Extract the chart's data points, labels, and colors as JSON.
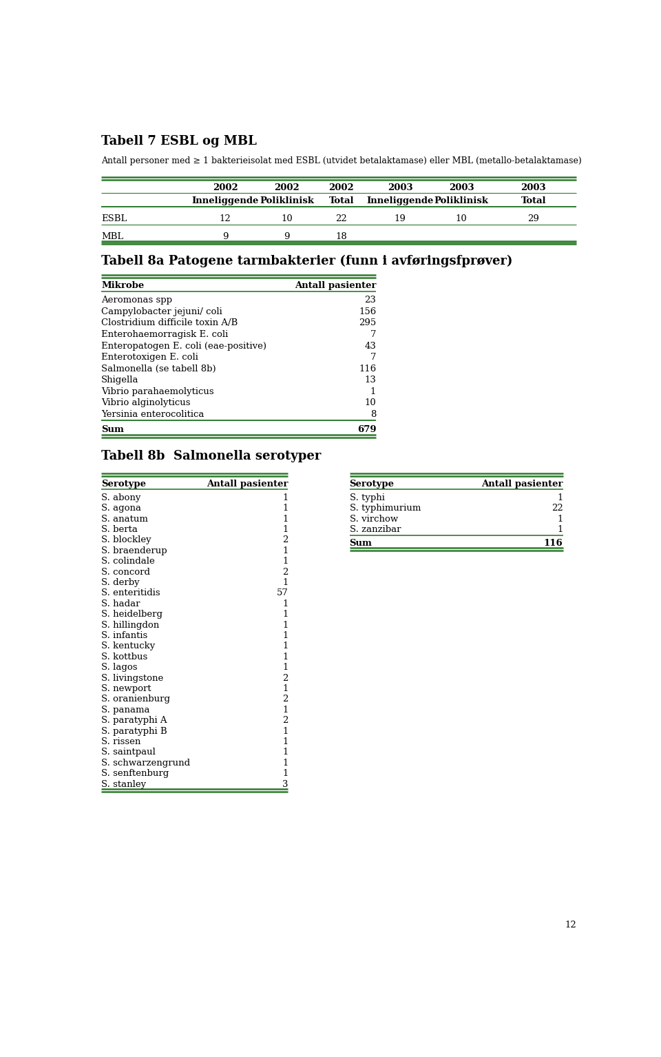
{
  "title7": "Tabell 7 ESBL og MBL",
  "subtitle7": "Antall personer med ≥ 1 bakterieisolat med ESBL (utvidet betalaktamase) eller MBL (metallo-betalaktamase)",
  "table7_headers_row1": [
    "",
    "2002",
    "2002",
    "2002",
    "2003",
    "2003",
    "2003"
  ],
  "table7_headers_row2": [
    "",
    "Inneliggende",
    "Poliklinisk",
    "Total",
    "Inneliggende",
    "Poliklinisk",
    "Total"
  ],
  "table7_data": [
    [
      "ESBL",
      "12",
      "10",
      "22",
      "19",
      "10",
      "29"
    ],
    [
      "MBL",
      "9",
      "9",
      "18",
      "",
      "",
      ""
    ]
  ],
  "title8a": "Tabell 8a Patogene tarmbakterier (funn i avføringsfprøver)",
  "table8a_headers": [
    "Mikrobe",
    "Antall pasienter"
  ],
  "table8a_data": [
    [
      "Aeromonas spp",
      "23"
    ],
    [
      "Campylobacter jejuni/ coli",
      "156"
    ],
    [
      "Clostridium difficile toxin A/B",
      "295"
    ],
    [
      "Enterohaemorragisk E. coli",
      "7"
    ],
    [
      "Enteropatogen E. coli (eae-positive)",
      "43"
    ],
    [
      "Enterotoxigen E. coli",
      "7"
    ],
    [
      "Salmonella (se tabell 8b)",
      "116"
    ],
    [
      "Shigella",
      "13"
    ],
    [
      "Vibrio parahaemolyticus",
      "1"
    ],
    [
      "Vibrio alginolyticus",
      "10"
    ],
    [
      "Yersinia enterocolitica",
      "8"
    ]
  ],
  "table8a_sum": [
    "Sum",
    "679"
  ],
  "title8b": "Tabell 8b  Salmonella serotyper",
  "table8b_headers": [
    "Serotype",
    "Antall pasienter"
  ],
  "table8b_left": [
    [
      "S. abony",
      "1"
    ],
    [
      "S. agona",
      "1"
    ],
    [
      "S. anatum",
      "1"
    ],
    [
      "S. berta",
      "1"
    ],
    [
      "S. blockley",
      "2"
    ],
    [
      "S. braenderup",
      "1"
    ],
    [
      "S. colindale",
      "1"
    ],
    [
      "S. concord",
      "2"
    ],
    [
      "S. derby",
      "1"
    ],
    [
      "S. enteritidis",
      "57"
    ],
    [
      "S. hadar",
      "1"
    ],
    [
      "S. heidelberg",
      "1"
    ],
    [
      "S. hillingdon",
      "1"
    ],
    [
      "S. infantis",
      "1"
    ],
    [
      "S. kentucky",
      "1"
    ],
    [
      "S. kottbus",
      "1"
    ],
    [
      "S. lagos",
      "1"
    ],
    [
      "S. livingstone",
      "2"
    ],
    [
      "S. newport",
      "1"
    ],
    [
      "S. oranienburg",
      "2"
    ],
    [
      "S. panama",
      "1"
    ],
    [
      "S. paratyphi A",
      "2"
    ],
    [
      "S. paratyphi B",
      "1"
    ],
    [
      "S. rissen",
      "1"
    ],
    [
      "S. saintpaul",
      "1"
    ],
    [
      "S. schwarzengrund",
      "1"
    ],
    [
      "S. senftenburg",
      "1"
    ],
    [
      "S. stanley",
      "3"
    ]
  ],
  "table8b_right": [
    [
      "S. typhi",
      "1"
    ],
    [
      "S. typhimurium",
      "22"
    ],
    [
      "S. virchow",
      "1"
    ],
    [
      "S. zanzibar",
      "1"
    ]
  ],
  "table8b_right_sum": [
    "Sum",
    "116"
  ],
  "green_color": "#2d7a2d",
  "page_number": "12",
  "bg_color": "#ffffff"
}
